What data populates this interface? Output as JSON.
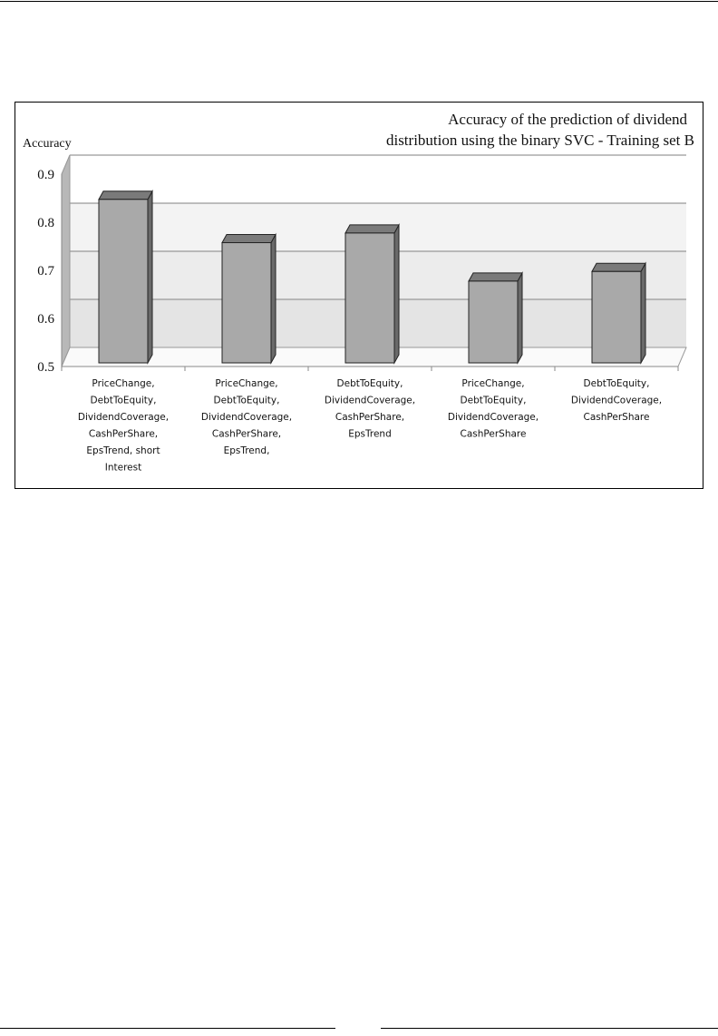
{
  "chart_data": {
    "type": "bar",
    "title": [
      "Accuracy of the prediction of dividend",
      "distribution using the binary SVC - Training set B"
    ],
    "ylabel": "Accuracy",
    "xlabel": "",
    "ylim": [
      0.5,
      0.9
    ],
    "yticks": [
      "0.5",
      "0.6",
      "0.7",
      "0.8",
      "0.9"
    ],
    "grid": true,
    "style": "3d-column",
    "colors": {
      "bar": "#a9a9a9",
      "bar_top": "#7a7a7a",
      "bar_side": "#6a6a6a"
    },
    "categories": [
      [
        "PriceChange,",
        "DebtToEquity,",
        "DividendCoverage,",
        "CashPerShare,",
        "EpsTrend, short",
        "Interest"
      ],
      [
        "PriceChange,",
        "DebtToEquity,",
        "DividendCoverage,",
        "CashPerShare,",
        "EpsTrend,"
      ],
      [
        "DebtToEquity,",
        "DividendCoverage,",
        "CashPerShare,",
        "EpsTrend"
      ],
      [
        "PriceChange,",
        "DebtToEquity,",
        "DividendCoverage,",
        "CashPerShare"
      ],
      [
        "DebtToEquity,",
        "DividendCoverage,",
        "CashPerShare"
      ]
    ],
    "values": [
      0.84,
      0.75,
      0.77,
      0.67,
      0.69
    ]
  }
}
